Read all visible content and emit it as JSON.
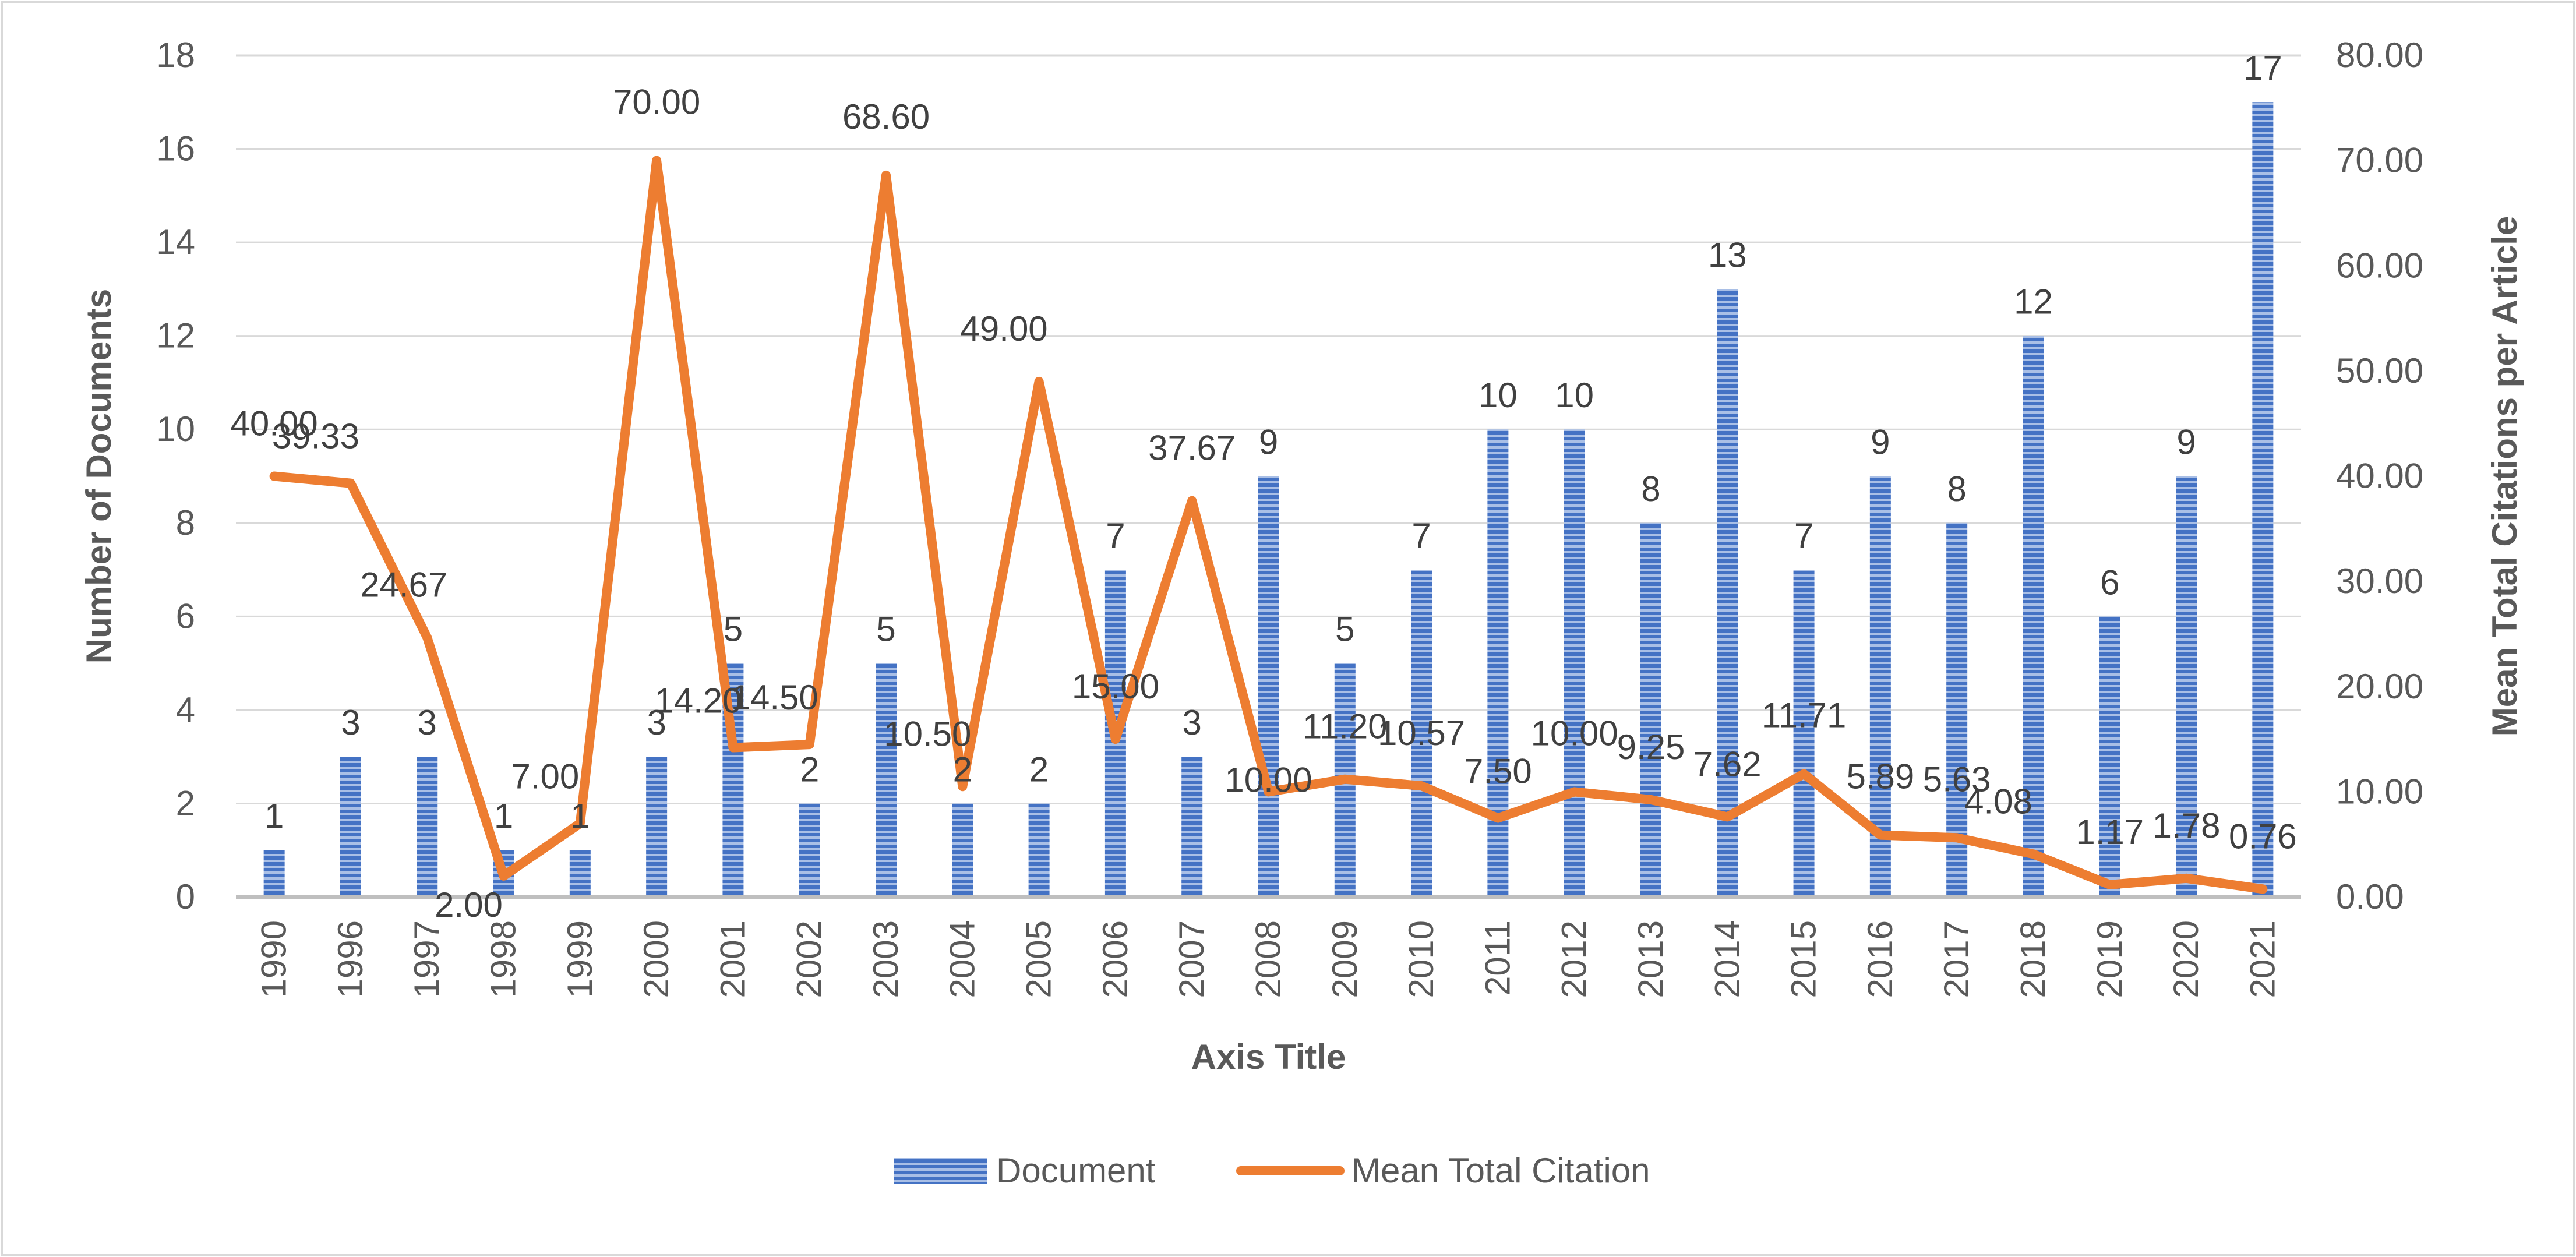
{
  "chart_data": {
    "type": "bar",
    "categories": [
      "1990",
      "1996",
      "1997",
      "1998",
      "1999",
      "2000",
      "2001",
      "2002",
      "2003",
      "2004",
      "2005",
      "2006",
      "2007",
      "2008",
      "2009",
      "2010",
      "2011",
      "2012",
      "2013",
      "2014",
      "2015",
      "2016",
      "2017",
      "2018",
      "2019",
      "2020",
      "2021"
    ],
    "series": [
      {
        "name": "Document",
        "type": "bar",
        "axis": "left",
        "color": "#4472C4",
        "values": [
          1,
          3,
          3,
          1,
          1,
          3,
          5,
          2,
          5,
          2,
          2,
          7,
          3,
          9,
          5,
          7,
          10,
          10,
          8,
          13,
          7,
          9,
          8,
          12,
          6,
          9,
          17
        ],
        "labels": [
          "1",
          "3",
          "3",
          "1",
          "1",
          "3",
          "5",
          "2",
          "5",
          "2",
          "2",
          "7",
          "3",
          "9",
          "5",
          "7",
          "10",
          "10",
          "8",
          "13",
          "7",
          "9",
          "8",
          "12",
          "6",
          "9",
          "17"
        ]
      },
      {
        "name": "Mean Total Citation",
        "type": "line",
        "axis": "right",
        "color": "#ED7D31",
        "values": [
          40.0,
          39.33,
          24.67,
          2.0,
          7.0,
          70.0,
          14.2,
          14.5,
          68.6,
          10.5,
          49.0,
          15.0,
          37.67,
          10.0,
          11.2,
          10.57,
          7.5,
          10.0,
          9.25,
          7.62,
          11.71,
          5.89,
          5.63,
          4.08,
          1.17,
          1.78,
          0.76
        ],
        "labels": [
          "40.00",
          "39.33",
          "24.67",
          "2.00",
          "7.00",
          "70.00",
          "14.20",
          "14.50",
          "68.60",
          "10.50",
          "49.00",
          "15.00",
          "37.67",
          "10.00",
          "11.20",
          "10.57",
          "7.50",
          "10.00",
          "9.25",
          "7.62",
          "11.71",
          "5.89",
          "5.63",
          "4.08",
          "1.17",
          "1.78",
          "0.76"
        ]
      }
    ],
    "left_axis": {
      "label": "Number of Documents",
      "ylim": [
        0,
        18
      ],
      "ticks": [
        0,
        2,
        4,
        6,
        8,
        10,
        12,
        14,
        16,
        18
      ],
      "tick_labels": [
        "0",
        "2",
        "4",
        "6",
        "8",
        "10",
        "12",
        "14",
        "16",
        "18"
      ]
    },
    "right_axis": {
      "label": "Mean Total Citations per Article",
      "ylim": [
        0,
        80
      ],
      "ticks": [
        0,
        10,
        20,
        30,
        40,
        50,
        60,
        70,
        80
      ],
      "tick_labels": [
        "0.00",
        "10.00",
        "20.00",
        "30.00",
        "40.00",
        "50.00",
        "60.00",
        "70.00",
        "80.00"
      ]
    },
    "xlabel": "Axis Title",
    "grid": true,
    "legend": {
      "position": "bottom",
      "entries": [
        "Document",
        "Mean Total Citation"
      ]
    }
  }
}
